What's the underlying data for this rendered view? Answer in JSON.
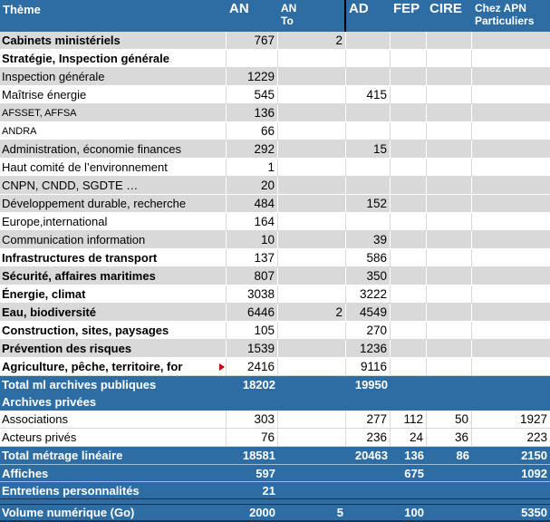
{
  "colors": {
    "header_blue": "#2E6DA4",
    "total_row_blue": "#2E6DA4",
    "row_gray": "#D9D9D9",
    "row_white": "#FFFFFF",
    "dark_border": "#17375E",
    "truncation_arrow_red": "#C00000"
  },
  "table": {
    "header": {
      "theme": "Thème",
      "an": "AN",
      "an_to": "AN\nTo",
      "ad": "AD",
      "fep": "FEP",
      "cire": "CIRE",
      "apn": "Chez APN\nParticuliers"
    },
    "rows": [
      {
        "theme": "Cabinets ministériels",
        "an": "767",
        "an_to": "2",
        "variant": "gray",
        "bold": true
      },
      {
        "theme": "Stratégie, Inspection générale",
        "variant": "white",
        "bold": true
      },
      {
        "theme": "Inspection générale",
        "an": "1229",
        "variant": "gray"
      },
      {
        "theme": "Maîtrise énergie",
        "an": "545",
        "ad": "415",
        "variant": "white"
      },
      {
        "theme": "AFSSET, AFFSA",
        "an": "136",
        "variant": "gray",
        "small": true
      },
      {
        "theme": "ANDRA",
        "an": "66",
        "variant": "white",
        "small": true
      },
      {
        "theme": "Administration, économie finances",
        "an": "292",
        "ad": "15",
        "variant": "gray"
      },
      {
        "theme": "Haut comité de l’environnement",
        "an": "1",
        "variant": "white"
      },
      {
        "theme": "CNPN, CNDD, SGDTE …",
        "an": "20",
        "variant": "gray"
      },
      {
        "theme": "Développement durable, recherche",
        "an": "484",
        "ad": "152",
        "variant": "gray"
      },
      {
        "theme": "Europe,international",
        "an": "164",
        "variant": "white"
      },
      {
        "theme": "Communication information",
        "an": "10",
        "ad": "39",
        "variant": "gray"
      },
      {
        "theme": "Infrastructures de transport",
        "an": "137",
        "ad": "586",
        "variant": "white",
        "bold": true
      },
      {
        "theme": "Sécurité, affaires maritimes",
        "an": "807",
        "ad": "350",
        "variant": "gray",
        "bold": true
      },
      {
        "theme": "Énergie, climat",
        "an": "3038",
        "ad": "3222",
        "variant": "white",
        "bold": true
      },
      {
        "theme": "Eau, biodiversité",
        "an": "6446",
        "an_to": "2",
        "ad": "4549",
        "variant": "gray",
        "bold": true
      },
      {
        "theme": "Construction, sites, paysages",
        "an": "105",
        "ad": "270",
        "variant": "white",
        "bold": true
      },
      {
        "theme": "Prévention des risques",
        "an": "1539",
        "ad": "1236",
        "variant": "gray",
        "bold": true
      },
      {
        "theme": "Agriculture, pêche, territoire, for",
        "an": "2416",
        "ad": "9116",
        "variant": "white",
        "bold": true,
        "truncated": true
      },
      {
        "theme": "Total ml archives publiques",
        "an": "18202",
        "ad": "19950",
        "variant": "blue"
      },
      {
        "theme": "Archives privées",
        "variant": "blue"
      },
      {
        "theme": "Associations",
        "an": "303",
        "ad": "277",
        "fep": "112",
        "cire": "50",
        "apn": "1927",
        "variant": "white"
      },
      {
        "theme": "Acteurs privés",
        "an": "76",
        "ad": "236",
        "fep": "24",
        "cire": "36",
        "apn": "223",
        "variant": "white"
      },
      {
        "theme": "Total métrage linéaire",
        "an": "18581",
        "ad": "20463",
        "fep": "136",
        "cire": "86",
        "apn": "2150",
        "variant": "blue"
      },
      {
        "theme": "Affiches",
        "an": "597",
        "fep": "675",
        "apn": "1092",
        "variant": "blue",
        "divider": true
      },
      {
        "theme": "Entretiens personnalités",
        "an": "21",
        "variant": "blue",
        "divider": true
      },
      {
        "theme": "",
        "variant": "blue-spacer"
      },
      {
        "theme": "Volume numérique (Go)",
        "an": "2000",
        "an_to": "5",
        "fep": "100",
        "apn": "5350",
        "variant": "blue",
        "last": true
      }
    ]
  }
}
